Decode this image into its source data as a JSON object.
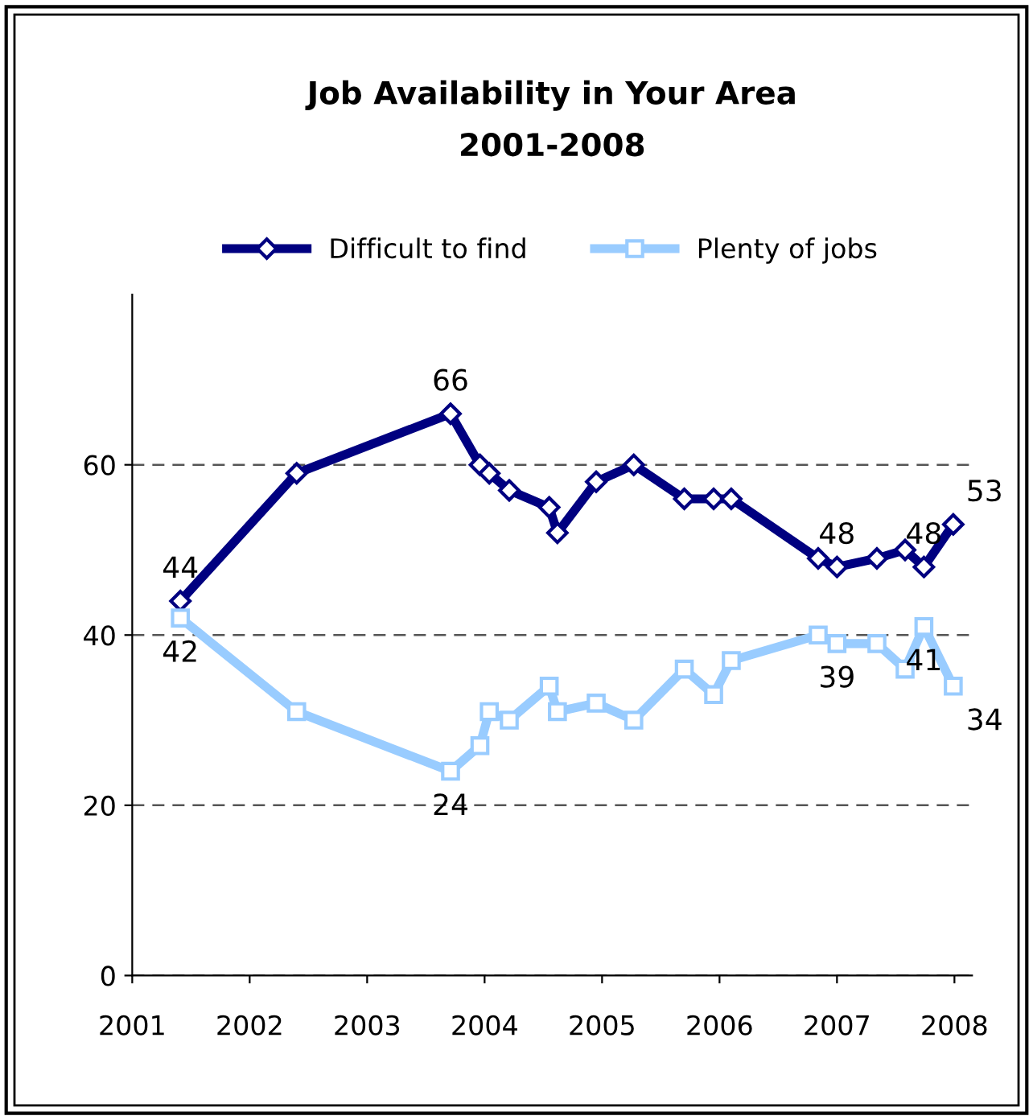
{
  "chart_data": {
    "type": "line",
    "title": "Job Availability in Your Area\n2001-2008",
    "x": [
      2001.41,
      2002.4,
      2003.71,
      2003.96,
      2004.04,
      2004.21,
      2004.55,
      2004.62,
      2004.95,
      2005.27,
      2005.7,
      2005.95,
      2006.1,
      2006.84,
      2007.0,
      2007.34,
      2007.58,
      2007.74,
      2007.99
    ],
    "series": [
      {
        "name": "Difficult to find",
        "color": "#000080",
        "marker": "diamond",
        "values": [
          44,
          59,
          66,
          60,
          59,
          57,
          55,
          52,
          58,
          60,
          56,
          56,
          56,
          49,
          48,
          49,
          50,
          48,
          53
        ],
        "value_labels": [
          "44",
          null,
          "66",
          null,
          null,
          null,
          null,
          null,
          null,
          null,
          null,
          null,
          null,
          null,
          "48",
          null,
          null,
          "48",
          "53"
        ]
      },
      {
        "name": "Plenty of jobs",
        "color": "#99ccff",
        "marker": "square",
        "values": [
          42,
          31,
          24,
          27,
          31,
          30,
          34,
          31,
          32,
          30,
          36,
          33,
          37,
          40,
          39,
          39,
          36,
          41,
          34
        ],
        "value_labels": [
          "42",
          null,
          "24",
          null,
          null,
          null,
          null,
          null,
          null,
          null,
          null,
          null,
          null,
          null,
          "39",
          null,
          null,
          "41",
          "34"
        ]
      }
    ],
    "xlim": [
      2001,
      2008.15
    ],
    "xticks": [
      2001,
      2002,
      2003,
      2004,
      2005,
      2006,
      2007,
      2008
    ],
    "ylim": [
      0,
      80
    ],
    "yticks": [
      0,
      20,
      40,
      60
    ],
    "grid": "y",
    "legend": "top",
    "line_style": "solid"
  }
}
